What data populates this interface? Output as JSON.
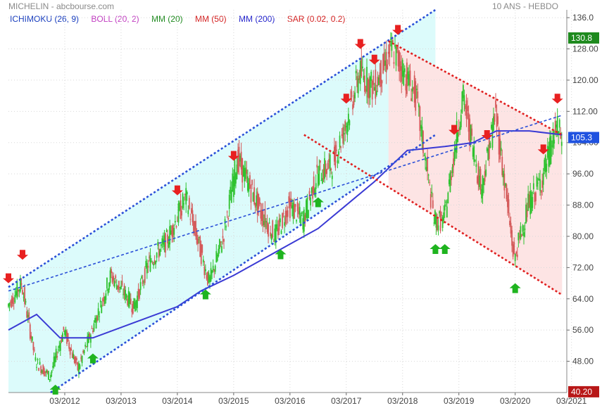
{
  "header": {
    "title": "MICHELIN - abcbourse.com",
    "period": "10 ANS - HEBDO"
  },
  "legend": [
    {
      "label": "ICHIMOKU (26, 9)",
      "color": "#1a3fbf"
    },
    {
      "label": "BOLL (20, 2)",
      "color": "#c23fc2"
    },
    {
      "label": "MM (20)",
      "color": "#1e8a1e"
    },
    {
      "label": "MM (50)",
      "color": "#d42020"
    },
    {
      "label": "MM (200)",
      "color": "#2222cc"
    },
    {
      "label": "SAR (0.02, 0.2)",
      "color": "#d42020"
    }
  ],
  "badges": {
    "last_price": "105.3",
    "high": "130.8",
    "low": "40.20"
  },
  "colors": {
    "up": "#2fc22f",
    "down": "#d45a5a",
    "ma200": "#3a3ad4",
    "channel_up": "#2a4fd8",
    "channel_down": "#e02020",
    "zone_up": "#dcfbfb",
    "zone_down": "#fde4e4"
  },
  "chart_data": {
    "type": "candlestick",
    "x_axis_type": "date",
    "ylim": [
      40,
      138
    ],
    "y_ticks": [
      48,
      56,
      64,
      72,
      80,
      88,
      96,
      104,
      112,
      120,
      128,
      136
    ],
    "y_tick_labels": [
      "48.00",
      "56.00",
      "64.00",
      "72.00",
      "80.00",
      "88.00",
      "96.00",
      "104.00",
      "112.00",
      "120.00",
      "128.00",
      "136.0"
    ],
    "x_ticks": [
      "03/2012",
      "03/2013",
      "03/2014",
      "03/2015",
      "03/2016",
      "03/2017",
      "03/2018",
      "03/2019",
      "03/2020",
      "03/2021"
    ],
    "price_path": [
      [
        "2011-03",
        62
      ],
      [
        "2011-06",
        68
      ],
      [
        "2011-09",
        48
      ],
      [
        "2011-12",
        44
      ],
      [
        "2012-03",
        56
      ],
      [
        "2012-06",
        46
      ],
      [
        "2012-09",
        56
      ],
      [
        "2013-01",
        70
      ],
      [
        "2013-06",
        62
      ],
      [
        "2013-09",
        73
      ],
      [
        "2014-01",
        79
      ],
      [
        "2014-05",
        90
      ],
      [
        "2014-10",
        68
      ],
      [
        "2015-01",
        80
      ],
      [
        "2015-04",
        100
      ],
      [
        "2015-09",
        86
      ],
      [
        "2015-12",
        80
      ],
      [
        "2016-03",
        88
      ],
      [
        "2016-06",
        84
      ],
      [
        "2016-09",
        96
      ],
      [
        "2016-12",
        98
      ],
      [
        "2017-03",
        108
      ],
      [
        "2017-06",
        122
      ],
      [
        "2017-09",
        118
      ],
      [
        "2018-01",
        128
      ],
      [
        "2018-06",
        116
      ],
      [
        "2018-10",
        84
      ],
      [
        "2018-12",
        84
      ],
      [
        "2019-04",
        116
      ],
      [
        "2019-08",
        92
      ],
      [
        "2019-11",
        112
      ],
      [
        "2020-03",
        74
      ],
      [
        "2020-06",
        88
      ],
      [
        "2020-09",
        95
      ],
      [
        "2020-12",
        108
      ],
      [
        "2021-01",
        105.3
      ]
    ],
    "ma200": [
      [
        "2011-03",
        56
      ],
      [
        "2011-09",
        60
      ],
      [
        "2012-02",
        54
      ],
      [
        "2012-09",
        54
      ],
      [
        "2013-06",
        58
      ],
      [
        "2014-03",
        62
      ],
      [
        "2014-08",
        66
      ],
      [
        "2015-03",
        70
      ],
      [
        "2015-09",
        74
      ],
      [
        "2016-03",
        78
      ],
      [
        "2016-09",
        82
      ],
      [
        "2017-03",
        88
      ],
      [
        "2017-09",
        94
      ],
      [
        "2018-04",
        102
      ],
      [
        "2018-12",
        103
      ],
      [
        "2019-06",
        104
      ],
      [
        "2019-11",
        107
      ],
      [
        "2020-06",
        107
      ],
      [
        "2021-01",
        106
      ]
    ],
    "sell_signals": [
      "2011-03",
      "2011-06",
      "2014-03",
      "2015-03",
      "2017-03",
      "2017-06",
      "2017-09",
      "2018-02",
      "2019-02",
      "2019-09",
      "2020-09",
      "2020-12"
    ],
    "buy_signals": [
      "2012-01",
      "2012-09",
      "2014-09",
      "2016-01",
      "2016-09",
      "2018-10",
      "2018-12",
      "2020-03"
    ],
    "trend_lines": [
      {
        "name": "upper-channel",
        "from": [
          "2011-03",
          67
        ],
        "to": [
          "2018-10",
          138
        ]
      },
      {
        "name": "lower-channel",
        "from": [
          "2011-12",
          40
        ],
        "to": [
          "2018-10",
          106
        ]
      },
      {
        "name": "middle-channel",
        "from": [
          "2011-03",
          66
        ],
        "to": [
          "2021-01",
          111
        ]
      },
      {
        "name": "upper-down-channel",
        "from": [
          "2017-12",
          130
        ],
        "to": [
          "2021-01",
          106
        ]
      },
      {
        "name": "lower-down-channel",
        "from": [
          "2016-06",
          106
        ],
        "to": [
          "2021-01",
          65
        ]
      }
    ],
    "zones": [
      {
        "name": "bullish-zone",
        "from": "2011-03",
        "to": "2018-10"
      },
      {
        "name": "bearish-zone",
        "from": "2017-12",
        "to": "2021-01"
      }
    ]
  }
}
